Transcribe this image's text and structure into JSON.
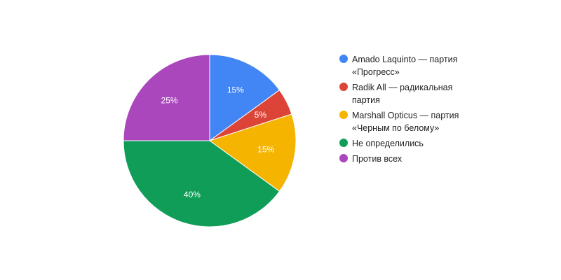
{
  "chart_data": {
    "type": "pie",
    "slices": [
      {
        "label": "Amado Laquinto — партия\n«Прогресс»",
        "value": 15,
        "value_label": "15%",
        "color": "#4285f4"
      },
      {
        "label": "Radik All — радикальная\nпартия",
        "value": 5,
        "value_label": "5%",
        "color": "#db4437"
      },
      {
        "label": "Marshall Opticus — партия\n«Черным по белому»",
        "value": 15,
        "value_label": "15%",
        "color": "#f4b400"
      },
      {
        "label": "Не определились",
        "value": 40,
        "value_label": "40%",
        "color": "#0f9d58"
      },
      {
        "label": "Против всех",
        "value": 25,
        "value_label": "25%",
        "color": "#ab47bc"
      }
    ],
    "legend_position": "right"
  }
}
